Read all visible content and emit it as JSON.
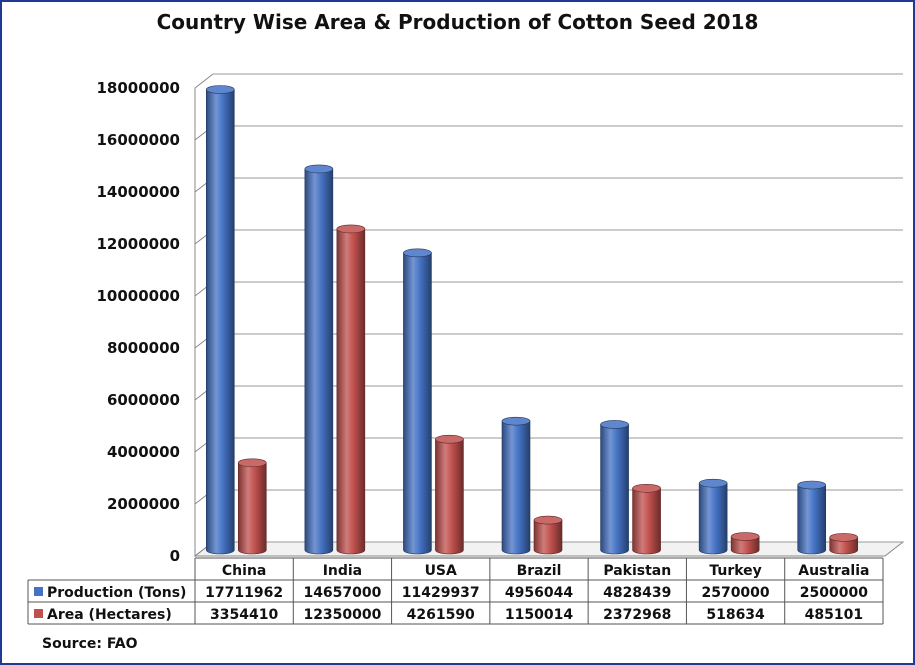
{
  "chart_data": {
    "type": "bar",
    "title": "Country Wise Area & Production of Cotton Seed 2018",
    "categories": [
      "China",
      "India",
      "USA",
      "Brazil",
      "Pakistan",
      "Turkey",
      "Australia"
    ],
    "series": [
      {
        "name": "Production (Tons)",
        "color": "#4472c4",
        "values": [
          17711962,
          14657000,
          11429937,
          4956044,
          4828439,
          2570000,
          2500000
        ]
      },
      {
        "name": "Area (Hectares)",
        "color": "#c0504d",
        "values": [
          3354410,
          12350000,
          4261590,
          1150014,
          2372968,
          518634,
          485101
        ]
      }
    ],
    "ylim": [
      0,
      18000000
    ],
    "yticks": [
      0,
      2000000,
      4000000,
      6000000,
      8000000,
      10000000,
      12000000,
      14000000,
      16000000,
      18000000
    ],
    "grid": true,
    "legend": "data-table",
    "source": "Source: FAO"
  }
}
